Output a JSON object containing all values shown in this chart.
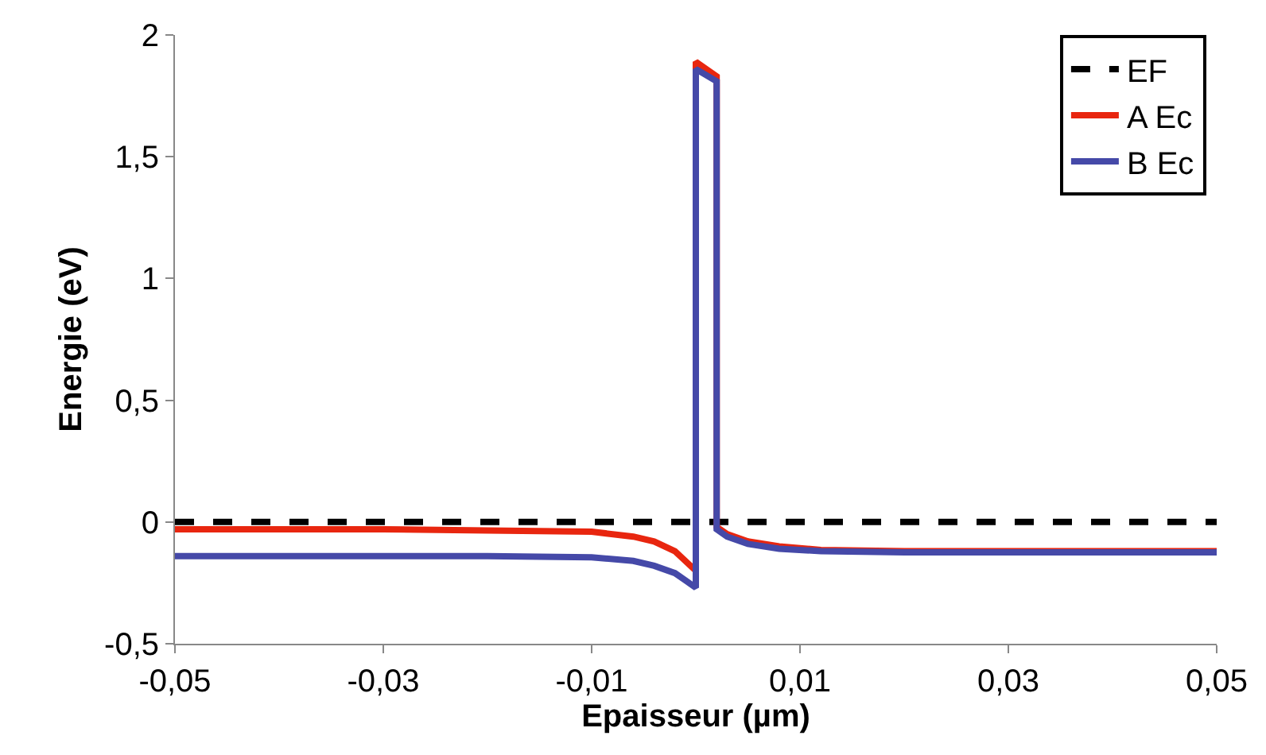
{
  "chart_data": {
    "type": "line",
    "xlabel": "Epaisseur (µm)",
    "ylabel": "Energie (eV)",
    "xlim": [
      -0.05,
      0.05
    ],
    "xticks": [
      {
        "value": -0.05,
        "label": "-0,05"
      },
      {
        "value": -0.03,
        "label": "-0,03"
      },
      {
        "value": -0.01,
        "label": "-0,01"
      },
      {
        "value": 0.01,
        "label": "0,01"
      },
      {
        "value": 0.03,
        "label": "0,03"
      },
      {
        "value": 0.05,
        "label": "0,05"
      }
    ],
    "ylim": [
      -0.5,
      2
    ],
    "yticks": [
      {
        "value": -0.5,
        "label": "-0,5"
      },
      0,
      {
        "value": 0.5,
        "label": "0,5"
      },
      1,
      {
        "value": 1.5,
        "label": "1,5"
      },
      2
    ],
    "legend": "top right",
    "marker": "none",
    "series": [
      {
        "name": "EF",
        "color": "#000000",
        "line_style": "dashed",
        "x": [
          -0.05,
          0.05
        ],
        "values": [
          0,
          0
        ]
      },
      {
        "name": "A Ec",
        "color": "#e8260f",
        "line_style": "solid",
        "x": [
          -0.05,
          -0.03,
          -0.02,
          -0.01,
          -0.006,
          -0.004,
          -0.002,
          -0.001,
          0,
          0,
          0.002,
          0.002,
          0.003,
          0.005,
          0.008,
          0.012,
          0.02,
          0.05
        ],
        "values": [
          -0.03,
          -0.03,
          -0.035,
          -0.04,
          -0.06,
          -0.08,
          -0.12,
          -0.16,
          -0.2,
          1.89,
          1.83,
          -0.02,
          -0.05,
          -0.08,
          -0.1,
          -0.115,
          -0.12,
          -0.12
        ]
      },
      {
        "name": "B Ec",
        "color": "#4549a8",
        "line_style": "solid",
        "x": [
          -0.05,
          -0.03,
          -0.02,
          -0.01,
          -0.006,
          -0.004,
          -0.002,
          -0.001,
          0,
          0,
          0.002,
          0.002,
          0.003,
          0.005,
          0.008,
          0.012,
          0.02,
          0.05
        ],
        "values": [
          -0.14,
          -0.14,
          -0.14,
          -0.145,
          -0.16,
          -0.18,
          -0.21,
          -0.24,
          -0.27,
          1.86,
          1.81,
          -0.03,
          -0.06,
          -0.09,
          -0.11,
          -0.12,
          -0.125,
          -0.125
        ]
      }
    ]
  }
}
